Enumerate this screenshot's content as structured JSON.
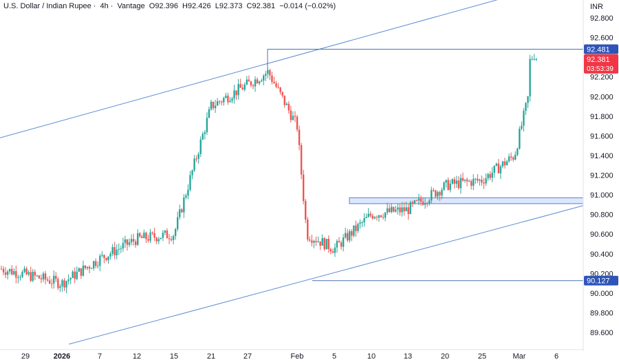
{
  "header": {
    "symbol": "U.S. Dollar / Indian Rupee",
    "sep1": "·",
    "timeframe": "4h",
    "sep2": "·",
    "source": "Vantage",
    "o_label": "O",
    "o_value": "92.396",
    "h_label": "H",
    "h_value": "92.426",
    "l_label": "L",
    "l_value": "92.373",
    "c_label": "C",
    "c_value": "92.381",
    "change": "−0.014 (−0.02%)"
  },
  "currency": "INR",
  "colors": {
    "up": "#26a69a",
    "down": "#ef5350",
    "trendline": "#5b8bd6",
    "level_line": "#4a6fb5",
    "zone_fill": "#dde7fb",
    "zone_border": "#5b7fc7",
    "price_tag_blue": "#2f54b8",
    "price_tag_red": "#f23645",
    "axis_text": "#131722",
    "grid_sep": "#e0e3eb"
  },
  "chart_data": {
    "type": "candlestick",
    "title": "U.S. Dollar / Indian Rupee · 4h · Vantage",
    "y_axis": {
      "ticks": [
        "92.800",
        "92.600",
        "92.400",
        "92.200",
        "92.000",
        "91.800",
        "91.600",
        "91.400",
        "91.200",
        "91.000",
        "90.800",
        "90.600",
        "90.400",
        "90.200",
        "90.000",
        "89.800",
        "89.600"
      ],
      "range": [
        89.43,
        92.99
      ]
    },
    "x_axis": {
      "ticks": [
        "29",
        "2026",
        "7",
        "12",
        "15",
        "21",
        "27",
        "Feb",
        "5",
        "10",
        "13",
        "20",
        "25",
        "Mar",
        "6"
      ]
    },
    "price_tags": [
      {
        "label": "92.481",
        "value": 92.481,
        "style": "blue"
      },
      {
        "label": "92.381",
        "value": 92.381,
        "style": "red",
        "sublabel": "03:53:39"
      },
      {
        "label": "90.127",
        "value": 90.127,
        "style": "blue"
      }
    ],
    "levels": [
      {
        "name": "resistance-level",
        "value": 92.481
      },
      {
        "name": "support-level",
        "value": 90.127
      }
    ],
    "zone": {
      "name": "breakout-zone",
      "low": 90.91,
      "high": 90.97
    },
    "trendlines": [
      {
        "name": "upper-channel",
        "from_value": 91.58,
        "to_value": 93.0
      },
      {
        "name": "lower-channel",
        "from_value": 89.48,
        "to_value": 90.89
      }
    ],
    "key_points": [
      {
        "label": "start",
        "value": 90.25
      },
      {
        "label": "2026",
        "value": 90.1
      },
      {
        "label": "7",
        "value": 90.35
      },
      {
        "label": "12",
        "value": 90.55
      },
      {
        "label": "15",
        "value": 90.6
      },
      {
        "label": "21",
        "value": 91.9
      },
      {
        "label": "27",
        "value": 92.25
      },
      {
        "label": "Feb",
        "value": 91.7
      },
      {
        "label": "Feb-drop",
        "value": 90.6
      },
      {
        "label": "5",
        "value": 90.45
      },
      {
        "label": "10",
        "value": 90.8
      },
      {
        "label": "13",
        "value": 90.85
      },
      {
        "label": "20",
        "value": 91.1
      },
      {
        "label": "25",
        "value": 91.15
      },
      {
        "label": "pre-Mar",
        "value": 91.4
      },
      {
        "label": "Mar",
        "value": 91.9
      },
      {
        "label": "last",
        "value": 92.381
      }
    ]
  }
}
